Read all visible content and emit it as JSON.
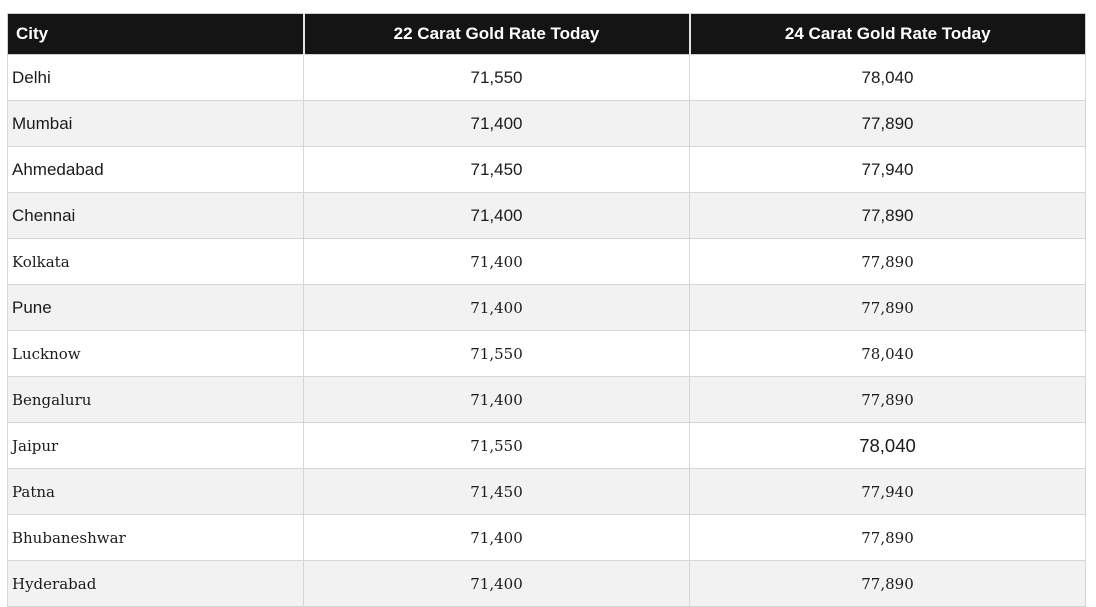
{
  "chart_data": {
    "type": "table",
    "columns": [
      "City",
      "22 Carat Gold Rate Today",
      "24 Carat Gold Rate Today"
    ],
    "rows": [
      {
        "city": "Delhi",
        "rate_22k": "71,550",
        "rate_24k": "78,040"
      },
      {
        "city": "Mumbai",
        "rate_22k": "71,400",
        "rate_24k": "77,890"
      },
      {
        "city": "Ahmedabad",
        "rate_22k": "71,450",
        "rate_24k": "77,940"
      },
      {
        "city": "Chennai",
        "rate_22k": "71,400",
        "rate_24k": "77,890"
      },
      {
        "city": "Kolkata",
        "rate_22k": "71,400",
        "rate_24k": "77,890"
      },
      {
        "city": "Pune",
        "rate_22k": "71,400",
        "rate_24k": "77,890"
      },
      {
        "city": "Lucknow",
        "rate_22k": "71,550",
        "rate_24k": "78,040"
      },
      {
        "city": "Bengaluru",
        "rate_22k": "71,400",
        "rate_24k": "77,890"
      },
      {
        "city": "Jaipur",
        "rate_22k": "71,550",
        "rate_24k": "78,040"
      },
      {
        "city": "Patna",
        "rate_22k": "71,450",
        "rate_24k": "77,940"
      },
      {
        "city": "Bhubaneshwar",
        "rate_22k": "71,400",
        "rate_24k": "77,890"
      },
      {
        "city": "Hyderabad",
        "rate_22k": "71,400",
        "rate_24k": "77,890"
      }
    ]
  },
  "colors": {
    "header_bg": "#141414",
    "header_text": "#ffffff",
    "row_alt_bg": "#f2f2f2",
    "row_bg": "#ffffff",
    "border": "#d6d6d6",
    "text": "#1b1b1b"
  }
}
